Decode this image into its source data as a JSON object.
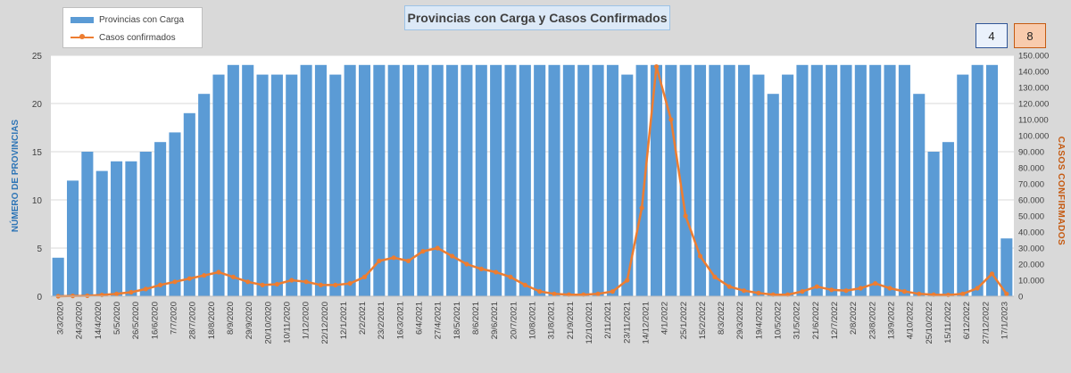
{
  "title": "Provincias con Carga y Casos Confirmados",
  "legend": {
    "bars_label": "Provincias con Carga",
    "line_label": "Casos confirmados"
  },
  "badges": {
    "left": "4",
    "right": "8"
  },
  "colors": {
    "bars": "#5b9bd5",
    "line": "#ed7d31",
    "left_axis_title": "#2e75b6",
    "right_axis_title": "#c55a11",
    "background": "#d9d9d9",
    "plot": "#ffffff"
  },
  "chart_data": {
    "type": "bar",
    "title": "Provincias con Carga y Casos Confirmados",
    "ylabel": "NÚMERO DE PROVINCIAS",
    "y2label": "CASOS CONFIRMADOS",
    "ylim": [
      0,
      25
    ],
    "y2lim": [
      0,
      150000
    ],
    "yticks": [
      "0",
      "5",
      "10",
      "15",
      "20",
      "25"
    ],
    "y2ticks": [
      "0",
      "10.000",
      "20.000",
      "30.000",
      "40.000",
      "50.000",
      "60.000",
      "70.000",
      "80.000",
      "90.000",
      "100.000",
      "110.000",
      "120.000",
      "130.000",
      "140.000",
      "150.000"
    ],
    "x_tick_labels": [
      "3/3/2020",
      "24/3/2020",
      "14/4/2020",
      "5/5/2020",
      "26/5/2020",
      "16/6/2020",
      "7/7/2020",
      "28/7/2020",
      "18/8/2020",
      "8/9/2020",
      "29/9/2020",
      "20/10/2020",
      "10/11/2020",
      "1/12/2020",
      "22/12/2020",
      "12/1/2021",
      "2/2/2021",
      "23/2/2021",
      "16/3/2021",
      "6/4/2021",
      "27/4/2021",
      "18/5/2021",
      "8/6/2021",
      "29/6/2021",
      "20/7/2021",
      "10/8/2021",
      "31/8/2021",
      "21/9/2021",
      "12/10/2021",
      "2/11/2021",
      "23/11/2021",
      "14/12/2021",
      "4/1/2022",
      "25/1/2022",
      "15/2/2022",
      "8/3/2022",
      "29/3/2022",
      "19/4/2022",
      "10/5/2022",
      "31/5/2022",
      "21/6/2022",
      "12/7/2022",
      "2/8/2022",
      "23/8/2022",
      "13/9/2022",
      "4/10/2022",
      "25/10/2022",
      "15/11/2022",
      "6/12/2022",
      "27/12/2022",
      "17/1/2023"
    ],
    "grid": true,
    "legend_position": "top-left",
    "series": [
      {
        "name": "Provincias con Carga",
        "type": "bar",
        "axis": "left",
        "values": [
          4,
          12,
          15,
          13,
          14,
          14,
          15,
          16,
          17,
          19,
          21,
          23,
          24,
          24,
          23,
          23,
          23,
          24,
          24,
          23,
          24,
          24,
          24,
          24,
          24,
          24,
          24,
          24,
          24,
          24,
          24,
          24,
          24,
          24,
          24,
          24,
          24,
          24,
          24,
          23,
          24,
          24,
          24,
          24,
          24,
          24,
          24,
          24,
          23,
          21,
          23,
          24,
          24,
          24,
          24,
          24,
          24,
          24,
          24,
          21,
          15,
          16,
          23,
          24,
          24,
          6
        ]
      },
      {
        "name": "Casos confirmados",
        "type": "line",
        "axis": "right",
        "values": [
          0,
          200,
          300,
          800,
          1500,
          2500,
          4500,
          7000,
          9000,
          11000,
          13000,
          15000,
          12000,
          9000,
          7000,
          7500,
          10000,
          9000,
          7000,
          7000,
          8000,
          12000,
          22000,
          24000,
          22000,
          28000,
          30000,
          25000,
          20000,
          17000,
          15000,
          12000,
          7000,
          3000,
          1500,
          1000,
          1000,
          1500,
          3000,
          10000,
          55000,
          143000,
          110000,
          50000,
          25000,
          12000,
          6000,
          3500,
          2000,
          1000,
          1000,
          3000,
          6000,
          4000,
          3500,
          5000,
          8000,
          5000,
          3000,
          1500,
          1000,
          800,
          1500,
          5000,
          14000,
          1500
        ]
      }
    ]
  }
}
